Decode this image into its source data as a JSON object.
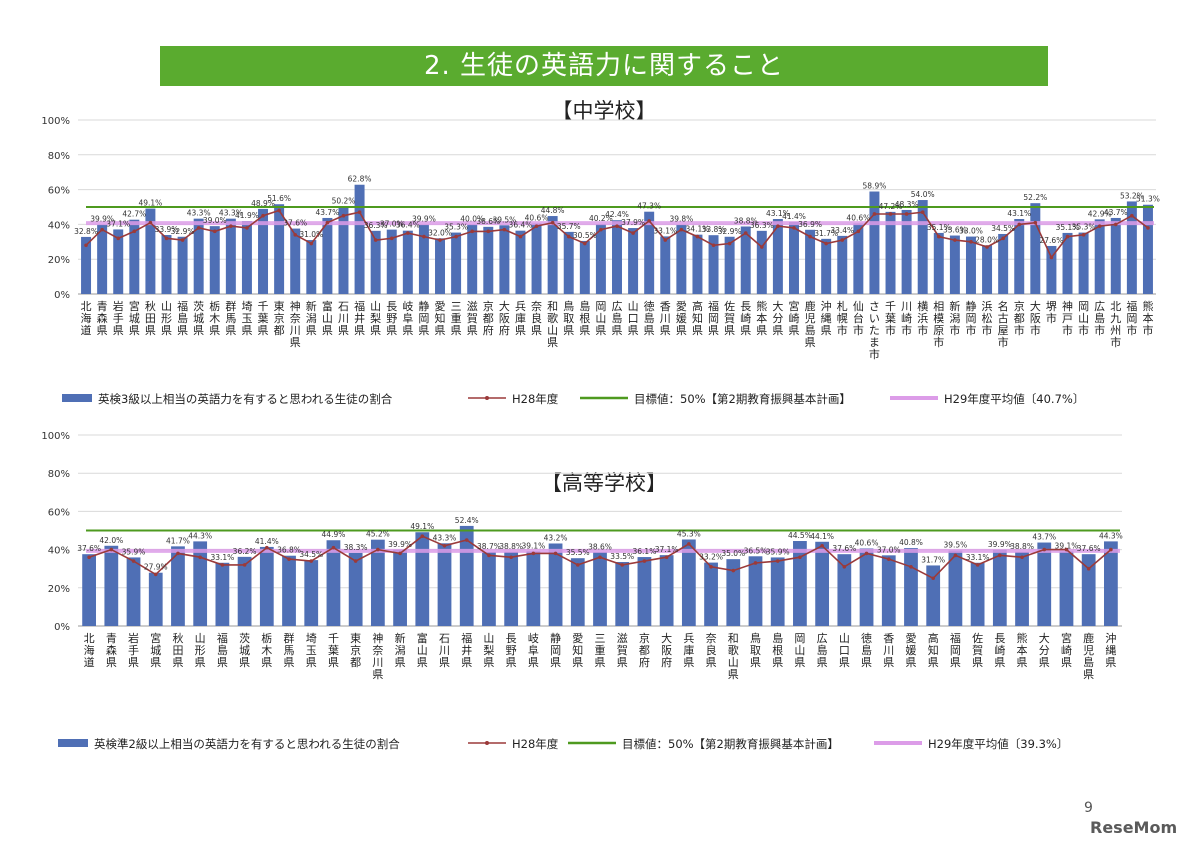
{
  "header": {
    "title": "2. 生徒の英語力に関すること"
  },
  "footer": {
    "page_number": "9",
    "brand": "ReseMom"
  },
  "colors": {
    "banner": "#5aab2f",
    "bar": "#4f6fb5",
    "prev_line": "#9b3a3a",
    "target_line": "#4e9a1f",
    "avg_line": "#dc9ce8"
  },
  "chart_data": [
    {
      "type": "bar",
      "title": "【中学校】",
      "ylim": [
        0,
        100
      ],
      "yticks": [
        "0%",
        "20%",
        "40%",
        "60%",
        "80%",
        "100%"
      ],
      "categories": [
        "北海道",
        "青森県",
        "岩手県",
        "宮城県",
        "秋田県",
        "山形県",
        "福島県",
        "茨城県",
        "栃木県",
        "群馬県",
        "埼玉県",
        "千葉県",
        "東京都",
        "神奈川県",
        "新潟県",
        "富山県",
        "石川県",
        "福井県",
        "山梨県",
        "長野県",
        "岐阜県",
        "静岡県",
        "愛知県",
        "三重県",
        "滋賀県",
        "京都府",
        "大阪府",
        "兵庫県",
        "奈良県",
        "和歌山県",
        "鳥取県",
        "島根県",
        "岡山県",
        "広島県",
        "山口県",
        "徳島県",
        "香川県",
        "愛媛県",
        "高知県",
        "福岡県",
        "佐賀県",
        "長崎県",
        "熊本県",
        "大分県",
        "宮崎県",
        "鹿児島県",
        "沖縄県",
        "札幌市",
        "仙台市",
        "さいたま市",
        "千葉市",
        "川崎市",
        "横浜市",
        "相模原市",
        "新潟市",
        "静岡市",
        "浜松市",
        "名古屋市",
        "京都市",
        "大阪市",
        "堺市",
        "神戸市",
        "岡山市",
        "広島市",
        "北九州市",
        "福岡市",
        "熊本市"
      ],
      "series": [
        {
          "name": "英検3級以上相当の英語力を有すると思われる生徒の割合",
          "kind": "bar",
          "values": [
            32.8,
            39.9,
            37.1,
            42.7,
            49.1,
            33.9,
            32.9,
            43.3,
            39.0,
            43.3,
            41.9,
            48.9,
            51.6,
            37.6,
            31.0,
            43.7,
            50.2,
            62.8,
            36.3,
            37.0,
            36.4,
            39.9,
            32.0,
            35.3,
            40.0,
            38.6,
            39.5,
            36.4,
            40.6,
            44.8,
            35.7,
            30.5,
            40.2,
            42.4,
            37.9,
            47.3,
            33.1,
            39.8,
            34.1,
            33.8,
            32.9,
            38.8,
            36.3,
            43.1,
            41.4,
            36.9,
            31.7,
            33.4,
            40.6,
            58.9,
            47.2,
            48.3,
            54.0,
            35.1,
            33.6,
            33.0,
            28.0,
            34.5,
            43.1,
            52.2,
            27.6,
            35.1,
            35.3,
            42.9,
            43.7,
            53.2,
            51.3
          ],
          "labels": [
            "32.8%",
            "39.9%",
            "37.1%",
            "42.7%",
            "49.1%",
            "33.9%",
            "32.9%",
            "43.3%",
            "39.0%",
            "43.3%",
            "41.9%",
            "48.9%",
            "51.6%",
            "37.6%",
            "31.0%",
            "43.7%",
            "50.2%",
            "62.8%",
            "36.3%",
            "37.0%",
            "36.4%",
            "39.9%",
            "32.0%",
            "35.3%",
            "40.0%",
            "38.6%",
            "39.5%",
            "36.4%",
            "40.6%",
            "44.8%",
            "35.7%",
            "30.5%",
            "40.2%",
            "42.4%",
            "37.9%",
            "47.3%",
            "33.1%",
            "39.8%",
            "34.1%",
            "33.8%",
            "32.9%",
            "38.8%",
            "36.3%",
            "43.1%",
            "41.4%",
            "36.9%",
            "31.7%",
            "33.4%",
            "40.6%",
            "58.9%",
            "47.2%",
            "48.3%",
            "54.0%",
            "35.1%",
            "33.6%",
            "33.0%",
            "28.0%",
            "34.5%",
            "43.1%",
            "52.2%",
            "27.6%",
            "35.1%",
            "35.3%",
            "42.9%",
            "43.7%",
            "53.2%",
            "51.3%"
          ]
        },
        {
          "name": "H28年度",
          "kind": "line",
          "values": [
            28.0,
            37.0,
            32.0,
            36.0,
            41.0,
            32.0,
            31.0,
            38.0,
            36.0,
            39.0,
            38.0,
            45.0,
            48.0,
            34.0,
            29.0,
            41.0,
            45.0,
            47.0,
            31.0,
            32.0,
            35.0,
            33.0,
            31.0,
            33.0,
            36.0,
            36.0,
            37.0,
            33.0,
            39.0,
            41.0,
            33.0,
            29.0,
            37.0,
            39.0,
            35.0,
            42.0,
            31.0,
            37.0,
            33.0,
            28.0,
            29.0,
            35.0,
            27.0,
            39.0,
            38.0,
            33.0,
            29.0,
            31.0,
            36.0,
            46.0,
            46.0,
            46.0,
            47.0,
            33.0,
            31.0,
            30.0,
            27.0,
            32.0,
            40.0,
            41.0,
            21.0,
            33.0,
            34.0,
            39.0,
            40.0,
            45.0,
            38.0
          ]
        },
        {
          "name": "目標値：50%【第2期教育振興基本計画】",
          "kind": "hline",
          "value": 50
        },
        {
          "name": "H29年度平均値〔40.7%〕",
          "kind": "hline",
          "value": 40.7
        }
      ],
      "legend": [
        "英検3級以上相当の英語力を有すると思われる生徒の割合",
        "H28年度",
        "目標値：50%【第2期教育振興基本計画】",
        "H29年度平均値〔40.7%〕"
      ],
      "legend_position": "bottom",
      "grid": true
    },
    {
      "type": "bar",
      "title": "【高等学校】",
      "ylim": [
        0,
        100
      ],
      "yticks": [
        "0%",
        "20%",
        "40%",
        "60%",
        "80%",
        "100%"
      ],
      "categories": [
        "北海道",
        "青森県",
        "岩手県",
        "宮城県",
        "秋田県",
        "山形県",
        "福島県",
        "茨城県",
        "栃木県",
        "群馬県",
        "埼玉県",
        "千葉県",
        "東京都",
        "神奈川県",
        "新潟県",
        "富山県",
        "石川県",
        "福井県",
        "山梨県",
        "長野県",
        "岐阜県",
        "静岡県",
        "愛知県",
        "三重県",
        "滋賀県",
        "京都府",
        "大阪府",
        "兵庫県",
        "奈良県",
        "和歌山県",
        "鳥取県",
        "島根県",
        "岡山県",
        "広島県",
        "山口県",
        "徳島県",
        "香川県",
        "愛媛県",
        "高知県",
        "福岡県",
        "佐賀県",
        "長崎県",
        "熊本県",
        "大分県",
        "宮崎県",
        "鹿児島県",
        "沖縄県"
      ],
      "series": [
        {
          "name": "英検準2級以上相当の英語力を有すると思われる生徒の割合",
          "kind": "bar",
          "values": [
            37.6,
            42.0,
            35.9,
            27.9,
            41.7,
            44.3,
            33.1,
            36.2,
            41.4,
            36.8,
            34.5,
            44.9,
            38.3,
            45.2,
            39.9,
            49.1,
            43.3,
            52.4,
            38.7,
            38.8,
            39.1,
            43.2,
            35.5,
            38.6,
            33.5,
            36.1,
            37.1,
            45.3,
            33.2,
            35.0,
            36.5,
            35.9,
            44.5,
            44.1,
            37.6,
            40.6,
            37.0,
            40.8,
            31.7,
            39.5,
            33.1,
            39.9,
            38.8,
            43.7,
            39.1,
            37.6,
            44.3
          ],
          "labels": [
            "37.6%",
            "42.0%",
            "35.9%",
            "27.9%",
            "41.7%",
            "44.3%",
            "33.1%",
            "36.2%",
            "41.4%",
            "36.8%",
            "34.5%",
            "44.9%",
            "38.3%",
            "45.2%",
            "39.9%",
            "49.1%",
            "43.3%",
            "52.4%",
            "38.7%",
            "38.8%",
            "39.1%",
            "43.2%",
            "35.5%",
            "38.6%",
            "33.5%",
            "36.1%",
            "37.1%",
            "45.3%",
            "33.2%",
            "35.0%",
            "36.5%",
            "35.9%",
            "44.5%",
            "44.1%",
            "37.6%",
            "40.6%",
            "37.0%",
            "40.8%",
            "31.7%",
            "39.5%",
            "33.1%",
            "39.9%",
            "38.8%",
            "43.7%",
            "39.1%",
            "37.6%",
            "44.3%"
          ]
        },
        {
          "name": "H28年度",
          "kind": "line",
          "values": [
            36.0,
            40.0,
            34.0,
            27.0,
            38.0,
            36.0,
            32.0,
            32.0,
            41.0,
            35.0,
            34.0,
            41.0,
            34.0,
            40.0,
            38.0,
            47.0,
            42.0,
            45.0,
            37.0,
            36.0,
            38.0,
            38.0,
            32.0,
            36.0,
            32.0,
            34.0,
            36.0,
            43.0,
            31.0,
            29.0,
            33.0,
            34.0,
            36.0,
            42.0,
            31.0,
            38.0,
            35.0,
            31.0,
            25.0,
            37.0,
            32.0,
            37.0,
            36.0,
            40.0,
            40.0,
            30.0,
            40.0
          ]
        },
        {
          "name": "目標値：50%【第2期教育振興基本計画】",
          "kind": "hline",
          "value": 50
        },
        {
          "name": "H29年度平均値〔39.3%〕",
          "kind": "hline",
          "value": 39.3
        }
      ],
      "legend": [
        "英検準2級以上相当の英語力を有すると思われる生徒の割合",
        "H28年度",
        "目標値：50%【第2期教育振興基本計画】",
        "H29年度平均値〔39.3%〕"
      ],
      "legend_position": "bottom",
      "grid": true
    }
  ]
}
